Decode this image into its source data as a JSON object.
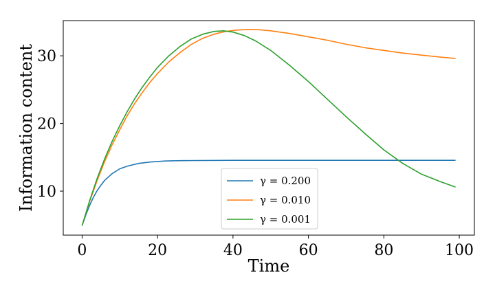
{
  "chart_data": {
    "type": "line",
    "title": "",
    "xlabel": "Time",
    "ylabel": "Information content",
    "xlim": [
      -5,
      104
    ],
    "ylim": [
      3.5,
      35.2
    ],
    "xticks": [
      0,
      20,
      40,
      60,
      80,
      100
    ],
    "yticks": [
      10,
      20,
      30
    ],
    "grid": false,
    "legend_position": "bottom-center",
    "series": [
      {
        "name": "γ = 0.200",
        "color": "#1f77b4",
        "x": [
          0,
          1,
          2,
          3,
          4,
          5,
          6,
          8,
          10,
          12,
          15,
          18,
          22,
          26,
          30,
          40,
          50,
          60,
          70,
          80,
          90,
          99
        ],
        "y": [
          4.9,
          6.5,
          7.9,
          9.1,
          10.1,
          10.9,
          11.6,
          12.6,
          13.3,
          13.7,
          14.1,
          14.3,
          14.45,
          14.5,
          14.52,
          14.55,
          14.55,
          14.55,
          14.55,
          14.55,
          14.55,
          14.55
        ]
      },
      {
        "name": "γ = 0.010",
        "color": "#ff7f0e",
        "x": [
          0,
          2,
          4,
          6,
          8,
          10,
          12,
          14,
          16,
          18,
          20,
          23,
          26,
          29,
          32,
          35,
          38,
          41,
          44,
          47,
          50,
          55,
          60,
          65,
          70,
          75,
          80,
          85,
          90,
          95,
          99
        ],
        "y": [
          4.9,
          8.5,
          11.6,
          14.4,
          16.9,
          19.1,
          21.2,
          23.0,
          24.6,
          26.1,
          27.4,
          29.1,
          30.5,
          31.7,
          32.6,
          33.2,
          33.6,
          33.8,
          33.9,
          33.85,
          33.7,
          33.3,
          32.8,
          32.3,
          31.7,
          31.2,
          30.8,
          30.4,
          30.1,
          29.8,
          29.6
        ]
      },
      {
        "name": "γ = 0.001",
        "color": "#2ca02c",
        "x": [
          0,
          2,
          4,
          6,
          8,
          10,
          12,
          14,
          16,
          18,
          20,
          23,
          26,
          29,
          32,
          35,
          37.5,
          40,
          43,
          46,
          50,
          55,
          60,
          65,
          70,
          75,
          80,
          85,
          90,
          95,
          99
        ],
        "y": [
          4.9,
          8.6,
          11.9,
          14.8,
          17.4,
          19.7,
          21.8,
          23.7,
          25.4,
          26.9,
          28.3,
          30.0,
          31.4,
          32.5,
          33.2,
          33.6,
          33.7,
          33.5,
          33.0,
          32.2,
          30.8,
          28.6,
          26.2,
          23.6,
          21.0,
          18.5,
          16.1,
          14.1,
          12.5,
          11.4,
          10.6
        ]
      }
    ]
  }
}
